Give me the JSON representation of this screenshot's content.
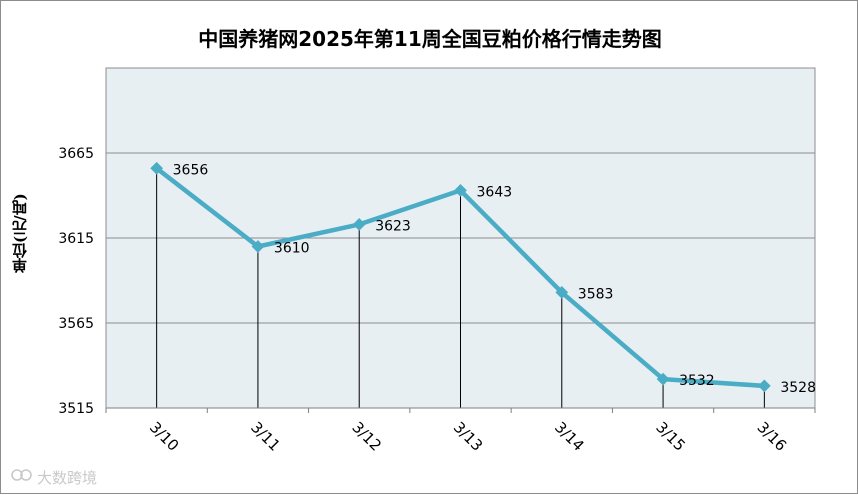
{
  "chart_data": {
    "type": "line",
    "title": "中国养猪网2025年第11周全国豆粕价格行情走势图",
    "ylabel": "单位(元/吨)",
    "xlabel": "",
    "categories": [
      "3/10",
      "3/11",
      "3/12",
      "3/13",
      "3/14",
      "3/15",
      "3/16"
    ],
    "values": [
      3656,
      3610,
      3623,
      3643,
      3583,
      3532,
      3528
    ],
    "ylim": [
      3515,
      3715
    ],
    "yticks": [
      3515,
      3565,
      3615,
      3665
    ],
    "grid": true,
    "line_color": "#4bacc6",
    "plot_background": "#e8eff3"
  },
  "watermark": {
    "text": "大数跨境"
  }
}
